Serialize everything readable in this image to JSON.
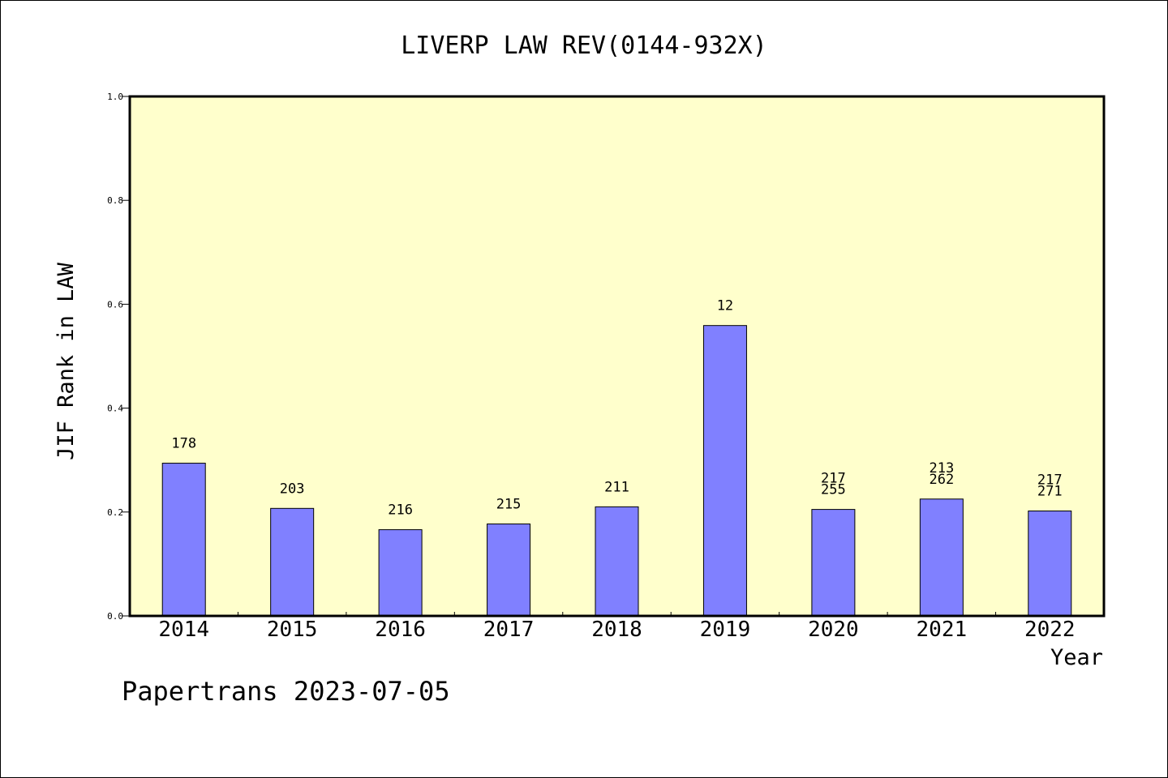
{
  "footer": "Papertrans 2023-07-05",
  "colors": {
    "plot_background": "#ffffcc",
    "bar_fill": "#8080ff",
    "bar_stroke": "#000000"
  },
  "chart_data": {
    "type": "bar",
    "title": "LIVERP LAW REV(0144-932X)",
    "xlabel": "Year",
    "ylabel": "JIF Rank in LAW",
    "ylim": [
      0,
      1.0
    ],
    "yticks": [
      "0.0",
      "0.2",
      "0.4",
      "0.6",
      "0.8",
      "1.0"
    ],
    "grid": false,
    "categories": [
      "2014",
      "2015",
      "2016",
      "2017",
      "2018",
      "2019",
      "2020",
      "2021",
      "2022"
    ],
    "values": [
      0.294,
      0.207,
      0.166,
      0.177,
      0.21,
      0.559,
      0.205,
      0.225,
      0.202
    ],
    "bar_labels": [
      [
        "178"
      ],
      [
        "203"
      ],
      [
        "216"
      ],
      [
        "215"
      ],
      [
        "211"
      ],
      [
        "12"
      ],
      [
        "217",
        "255"
      ],
      [
        "213",
        "262"
      ],
      [
        "217",
        "271"
      ]
    ]
  }
}
